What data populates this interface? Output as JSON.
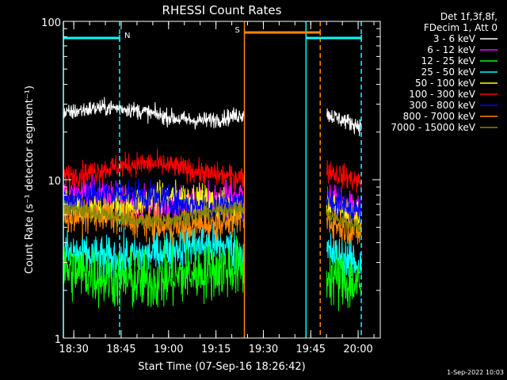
{
  "chart_data": {
    "type": "line",
    "title": "RHESSI Count Rates",
    "xlabel": "Start Time (07-Sep-16 18:26:42)",
    "ylabel": "Count Rate (s⁻¹ detector segment⁻¹)",
    "y_scale": "log",
    "ylim": [
      1,
      100
    ],
    "xlim": [
      "18:26:42",
      "20:07:00"
    ],
    "x_ticks": [
      "18:30",
      "18:45",
      "19:00",
      "19:15",
      "19:30",
      "19:45",
      "20:00"
    ],
    "y_ticks": [
      "1",
      "10",
      "100"
    ],
    "legend_header": [
      "Det 1f,3f,8f,",
      "FDecim 1, Att 0"
    ],
    "legend_position": "top-right outside",
    "data_intervals": [
      [
        "18:26:42",
        "19:24:00"
      ],
      [
        "19:50:00",
        "20:01:00"
      ]
    ],
    "series": [
      {
        "name": "3 - 6 keV",
        "color": "#ffffff",
        "level": 26,
        "noise": 0.05
      },
      {
        "name": "6 - 12 keV",
        "color": "#ff00ff",
        "level": 7.5,
        "noise": 0.1
      },
      {
        "name": "12 - 25 keV",
        "color": "#00ff00",
        "level": 2.5,
        "noise": 0.18
      },
      {
        "name": "25 - 50 keV",
        "color": "#00ffff",
        "level": 3.5,
        "noise": 0.13
      },
      {
        "name": "50 - 100 keV",
        "color": "#ffff00",
        "level": 7.0,
        "noise": 0.1
      },
      {
        "name": "100 - 300 keV",
        "color": "#ff0000",
        "level": 11.5,
        "noise": 0.07
      },
      {
        "name": "300 - 800 keV",
        "color": "#0000ff",
        "level": 7.5,
        "noise": 0.09
      },
      {
        "name": "800 - 7000 keV",
        "color": "#ff8800",
        "level": 5.5,
        "noise": 0.1
      },
      {
        "name": "7000 - 15000 keV",
        "color": "#888800",
        "level": 6.0,
        "noise": 0.05
      }
    ],
    "annotations": [
      {
        "label": "N",
        "type": "night",
        "bar": [
          "18:26:42",
          "18:44:30"
        ],
        "color": "#00ffff"
      },
      {
        "label": "S",
        "type": "saa",
        "bar": [
          "19:24:00",
          "19:48:00"
        ],
        "color": "#ff8800"
      },
      {
        "label": "",
        "type": "night",
        "bar": [
          "19:43:30",
          "20:01:00"
        ],
        "color": "#00ffff"
      }
    ],
    "vlines": [
      {
        "time": "18:26:42",
        "color": "#00ffff",
        "style": "solid"
      },
      {
        "time": "18:44:30",
        "color": "#00ffff",
        "style": "dashed"
      },
      {
        "time": "19:24:00",
        "color": "#ff8800",
        "style": "solid"
      },
      {
        "time": "19:43:30",
        "color": "#00ffff",
        "style": "solid"
      },
      {
        "time": "19:48:00",
        "color": "#ff8800",
        "style": "dashed"
      },
      {
        "time": "20:01:00",
        "color": "#00ffff",
        "style": "dashed"
      }
    ]
  },
  "footer": {
    "timestamp": "1-Sep-2022 10:03"
  }
}
